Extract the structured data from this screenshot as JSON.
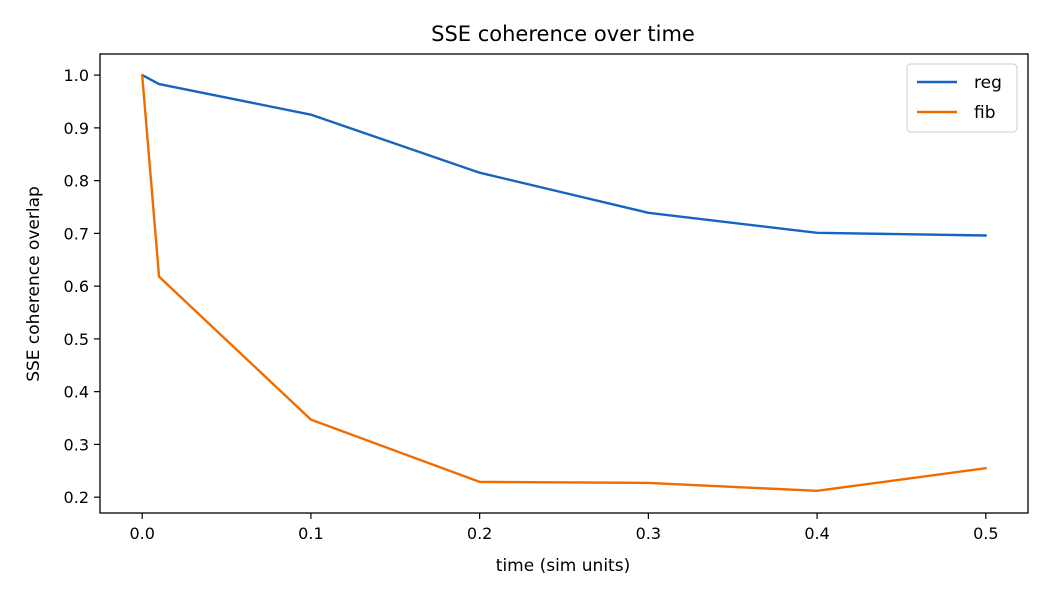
{
  "chart_data": {
    "type": "line",
    "title": "SSE coherence over time",
    "xlabel": "time (sim units)",
    "ylabel": "SSE coherence overlap",
    "xlim": [
      -0.025,
      0.525
    ],
    "ylim": [
      0.17,
      1.04
    ],
    "xticks": [
      0.0,
      0.1,
      0.2,
      0.3,
      0.4,
      0.5
    ],
    "xtick_labels": [
      "0.0",
      "0.1",
      "0.2",
      "0.3",
      "0.4",
      "0.5"
    ],
    "yticks": [
      0.2,
      0.3,
      0.4,
      0.5,
      0.6,
      0.7,
      0.8,
      0.9,
      1.0
    ],
    "ytick_labels": [
      "0.2",
      "0.3",
      "0.4",
      "0.5",
      "0.6",
      "0.7",
      "0.8",
      "0.9",
      "1.0"
    ],
    "grid": false,
    "legend_position": "top-right",
    "series": [
      {
        "name": "reg",
        "color": "#1565c0",
        "x": [
          0.0,
          0.01,
          0.1,
          0.2,
          0.3,
          0.4,
          0.5
        ],
        "y": [
          1.0,
          0.983,
          0.925,
          0.815,
          0.739,
          0.701,
          0.696
        ]
      },
      {
        "name": "fib",
        "color": "#ef6c00",
        "x": [
          0.0,
          0.01,
          0.1,
          0.2,
          0.3,
          0.4,
          0.5
        ],
        "y": [
          1.0,
          0.618,
          0.347,
          0.229,
          0.227,
          0.212,
          0.255
        ]
      }
    ]
  }
}
